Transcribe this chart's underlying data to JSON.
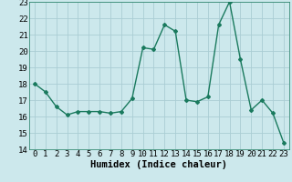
{
  "x": [
    0,
    1,
    2,
    3,
    4,
    5,
    6,
    7,
    8,
    9,
    10,
    11,
    12,
    13,
    14,
    15,
    16,
    17,
    18,
    19,
    20,
    21,
    22,
    23
  ],
  "y": [
    18.0,
    17.5,
    16.6,
    16.1,
    16.3,
    16.3,
    16.3,
    16.2,
    16.3,
    17.1,
    20.2,
    20.1,
    21.6,
    21.2,
    17.0,
    16.9,
    17.2,
    21.6,
    23.0,
    19.5,
    16.4,
    17.0,
    16.2,
    14.4
  ],
  "line_color": "#1a7a5e",
  "marker": "D",
  "marker_size": 2.0,
  "bg_color": "#cce8ec",
  "grid_color": "#aacdd4",
  "xlabel": "Humidex (Indice chaleur)",
  "ylim": [
    14,
    23
  ],
  "xlim": [
    -0.5,
    23.5
  ],
  "xticks": [
    0,
    1,
    2,
    3,
    4,
    5,
    6,
    7,
    8,
    9,
    10,
    11,
    12,
    13,
    14,
    15,
    16,
    17,
    18,
    19,
    20,
    21,
    22,
    23
  ],
  "yticks": [
    14,
    15,
    16,
    17,
    18,
    19,
    20,
    21,
    22,
    23
  ],
  "xlabel_fontsize": 7.5,
  "tick_fontsize": 6.5,
  "line_width": 1.0
}
